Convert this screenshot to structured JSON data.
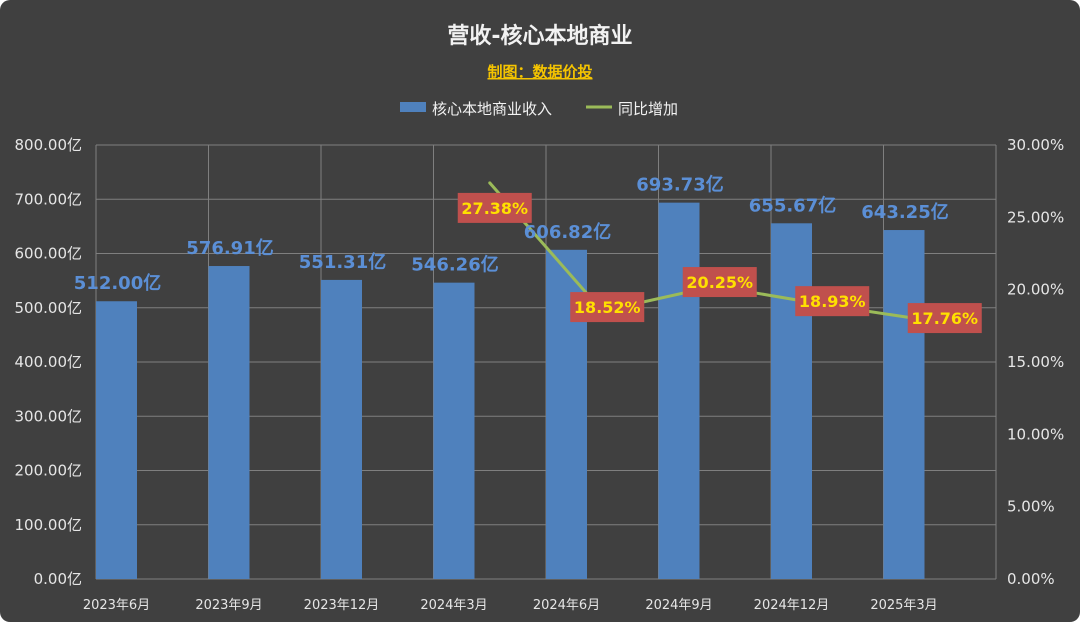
{
  "chart_data": {
    "type": "bar",
    "title": "营收-核心本地商业",
    "subtitle": "制图：数据价投",
    "categories": [
      "2023年6月",
      "2023年9月",
      "2023年12月",
      "2024年3月",
      "2024年6月",
      "2024年9月",
      "2024年12月",
      "2025年3月"
    ],
    "series": [
      {
        "name": "核心本地商业收入",
        "type": "bar",
        "axis": "left",
        "values": [
          512.0,
          576.91,
          551.31,
          546.26,
          606.82,
          693.73,
          655.67,
          643.25
        ],
        "labels": [
          "512.00亿",
          "576.91亿",
          "551.31亿",
          "546.26亿",
          "606.82亿",
          "693.73亿",
          "655.67亿",
          "643.25亿"
        ],
        "color": "#4f81bd"
      },
      {
        "name": "同比增加",
        "type": "line",
        "axis": "right",
        "values": [
          null,
          null,
          null,
          27.38,
          18.52,
          20.25,
          18.93,
          17.76
        ],
        "labels": [
          "",
          "",
          "",
          "27.38%",
          "18.52%",
          "20.25%",
          "18.93%",
          "17.76%"
        ],
        "color": "#9bbb59"
      }
    ],
    "y_left": {
      "range": [
        0,
        800
      ],
      "ticks": [
        "0.00亿",
        "100.00亿",
        "200.00亿",
        "300.00亿",
        "400.00亿",
        "500.00亿",
        "600.00亿",
        "700.00亿",
        "800.00亿"
      ]
    },
    "y_right": {
      "range": [
        0,
        30
      ],
      "ticks": [
        "0.00%",
        "5.00%",
        "10.00%",
        "15.00%",
        "20.00%",
        "25.00%",
        "30.00%"
      ]
    },
    "grid": true,
    "legend": "top-center",
    "colors": {
      "background": "#404040",
      "grid": "#7f7f7f",
      "bar_label": "#5b8fd6",
      "pct_label_bg": "#c0504d",
      "pct_label_text": "#ffe000"
    }
  }
}
